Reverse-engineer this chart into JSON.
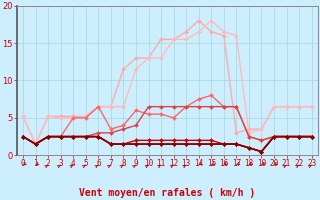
{
  "bg_color": "#cceeff",
  "grid_color": "#aadddd",
  "xlabel": "Vent moyen/en rafales ( km/h )",
  "xlabel_color": "#cc0000",
  "xlabel_fontsize": 7,
  "tick_color": "#cc0000",
  "xlim": [
    -0.5,
    23.5
  ],
  "ylim": [
    0,
    20
  ],
  "yticks": [
    0,
    5,
    10,
    15,
    20
  ],
  "xticks": [
    0,
    1,
    2,
    3,
    4,
    5,
    6,
    7,
    8,
    9,
    10,
    11,
    12,
    13,
    14,
    15,
    16,
    17,
    18,
    19,
    20,
    21,
    22,
    23
  ],
  "lines": [
    {
      "x": [
        0,
        1,
        2,
        3,
        4,
        5,
        6,
        7,
        8,
        9,
        10,
        11,
        12,
        13,
        14,
        15,
        16,
        17,
        18,
        19,
        20,
        21,
        22,
        23
      ],
      "y": [
        5.2,
        1.5,
        5.2,
        5.2,
        5.2,
        5.2,
        6.5,
        6.5,
        11.5,
        13,
        13,
        15.5,
        15.5,
        16.5,
        18,
        16.5,
        16,
        3,
        3.5,
        3.5,
        6.5,
        6.5,
        6.5,
        6.5
      ],
      "color": "#ffaaaa",
      "lw": 1.0
    },
    {
      "x": [
        0,
        1,
        2,
        3,
        4,
        5,
        6,
        7,
        8,
        9,
        10,
        11,
        12,
        13,
        14,
        15,
        16,
        17,
        18,
        19,
        20,
        21,
        22,
        23
      ],
      "y": [
        5.2,
        1.5,
        5.2,
        5.0,
        5.0,
        5.2,
        6.5,
        6.5,
        6.5,
        11.5,
        13,
        13,
        15.5,
        15.5,
        16.5,
        18,
        16.5,
        16,
        3,
        3.5,
        6.5,
        6.5,
        6.5,
        6.5
      ],
      "color": "#ffbbbb",
      "lw": 1.0
    },
    {
      "x": [
        0,
        1,
        2,
        3,
        4,
        5,
        6,
        7,
        8,
        9,
        10,
        11,
        12,
        13,
        14,
        15,
        16,
        17,
        18,
        19,
        20,
        21,
        22,
        23
      ],
      "y": [
        2.5,
        1.5,
        2.5,
        2.5,
        5.0,
        5.0,
        6.5,
        3.5,
        4.0,
        6.0,
        5.5,
        5.5,
        5.0,
        6.5,
        7.5,
        8.0,
        6.5,
        6.5,
        2.5,
        2.0,
        2.5,
        2.5,
        2.5,
        2.5
      ],
      "color": "#ff6666",
      "lw": 1.0
    },
    {
      "x": [
        0,
        1,
        2,
        3,
        4,
        5,
        6,
        7,
        8,
        9,
        10,
        11,
        12,
        13,
        14,
        15,
        16,
        17,
        18,
        19,
        20,
        21,
        22,
        23
      ],
      "y": [
        2.5,
        1.5,
        2.5,
        2.5,
        2.5,
        2.5,
        3.0,
        3.0,
        3.5,
        4.0,
        6.5,
        6.5,
        6.5,
        6.5,
        6.5,
        6.5,
        6.5,
        6.5,
        2.5,
        2.0,
        2.5,
        2.5,
        2.5,
        2.5
      ],
      "color": "#dd4444",
      "lw": 1.0
    },
    {
      "x": [
        0,
        1,
        2,
        3,
        4,
        5,
        6,
        7,
        8,
        9,
        10,
        11,
        12,
        13,
        14,
        15,
        16,
        17,
        18,
        19,
        20,
        21,
        22,
        23
      ],
      "y": [
        2.5,
        1.5,
        2.5,
        2.5,
        2.5,
        2.5,
        2.5,
        1.5,
        1.5,
        2.0,
        2.0,
        2.0,
        2.0,
        2.0,
        2.0,
        2.0,
        1.5,
        1.5,
        1.0,
        0.5,
        2.5,
        2.5,
        2.5,
        2.5
      ],
      "color": "#cc0000",
      "lw": 1.0
    },
    {
      "x": [
        0,
        1,
        2,
        3,
        4,
        5,
        6,
        7,
        8,
        9,
        10,
        11,
        12,
        13,
        14,
        15,
        16,
        17,
        18,
        19,
        20,
        21,
        22,
        23
      ],
      "y": [
        2.5,
        1.5,
        2.5,
        2.5,
        2.5,
        2.5,
        2.5,
        1.5,
        1.5,
        1.5,
        1.5,
        1.5,
        1.5,
        1.5,
        1.5,
        1.5,
        1.5,
        1.5,
        1.0,
        0.5,
        2.5,
        2.5,
        2.5,
        2.5
      ],
      "color": "#aa0000",
      "lw": 1.0
    },
    {
      "x": [
        0,
        1,
        2,
        3,
        4,
        5,
        6,
        7,
        8,
        9,
        10,
        11,
        12,
        13,
        14,
        15,
        16,
        17,
        18,
        19,
        20,
        21,
        22,
        23
      ],
      "y": [
        2.5,
        1.5,
        2.5,
        2.5,
        2.5,
        2.5,
        2.5,
        1.5,
        1.5,
        1.5,
        1.5,
        1.5,
        1.5,
        1.5,
        1.5,
        1.5,
        1.5,
        1.5,
        1.0,
        0.5,
        2.5,
        2.5,
        2.5,
        2.5
      ],
      "color": "#880000",
      "lw": 1.2
    }
  ],
  "arrow_angles": [
    225,
    225,
    45,
    45,
    45,
    45,
    45,
    45,
    45,
    45,
    45,
    45,
    45,
    45,
    225,
    225,
    225,
    225,
    225,
    225,
    225,
    45,
    45,
    45
  ],
  "arrow_color": "#cc0000"
}
